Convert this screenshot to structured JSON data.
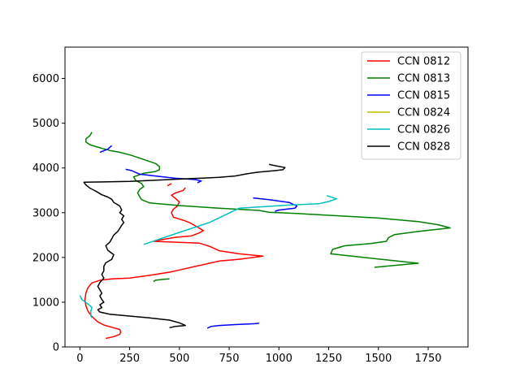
{
  "chart_data": {
    "type": "line",
    "title": "",
    "xlabel": "",
    "ylabel": "",
    "xlim": [
      -75,
      1950
    ],
    "ylim": [
      0,
      6700
    ],
    "xticks": [
      0,
      250,
      500,
      750,
      1000,
      1250,
      1500,
      1750
    ],
    "yticks": [
      0,
      1000,
      2000,
      3000,
      4000,
      5000,
      6000
    ],
    "grid": false,
    "legend_position": "top-right",
    "series": [
      {
        "name": "CCN 0812",
        "color": "#ff0000",
        "segments": [
          [
            [
              130,
              190
            ],
            [
              170,
              230
            ],
            [
              200,
              280
            ],
            [
              205,
              330
            ],
            [
              200,
              390
            ],
            [
              160,
              440
            ],
            [
              120,
              490
            ],
            [
              90,
              560
            ],
            [
              60,
              680
            ],
            [
              40,
              800
            ],
            [
              30,
              920
            ],
            [
              25,
              1050
            ],
            [
              30,
              1200
            ],
            [
              40,
              1320
            ],
            [
              60,
              1430
            ],
            [
              100,
              1490
            ],
            [
              160,
              1520
            ],
            [
              250,
              1540
            ],
            [
              350,
              1600
            ],
            [
              450,
              1670
            ],
            [
              500,
              1720
            ],
            [
              580,
              1800
            ],
            [
              650,
              1870
            ],
            [
              700,
              1920
            ],
            [
              800,
              1960
            ],
            [
              920,
              2030
            ],
            [
              800,
              2080
            ],
            [
              700,
              2150
            ],
            [
              650,
              2250
            ],
            [
              600,
              2320
            ],
            [
              370,
              2360
            ],
            [
              400,
              2390
            ],
            [
              480,
              2450
            ],
            [
              560,
              2480
            ],
            [
              600,
              2550
            ],
            [
              620,
              2600
            ],
            [
              590,
              2680
            ],
            [
              550,
              2780
            ],
            [
              520,
              2830
            ],
            [
              470,
              2900
            ],
            [
              460,
              3000
            ],
            [
              470,
              3080
            ],
            [
              490,
              3150
            ],
            [
              500,
              3240
            ],
            [
              480,
              3320
            ],
            [
              460,
              3390
            ],
            [
              480,
              3440
            ],
            [
              520,
              3500
            ],
            [
              530,
              3560
            ]
          ],
          [
            [
              440,
              3600
            ],
            [
              460,
              3650
            ]
          ]
        ]
      },
      {
        "name": "CCN 0813",
        "color": "#008000",
        "segments": [
          [
            [
              60,
              4800
            ],
            [
              50,
              4720
            ],
            [
              30,
              4650
            ],
            [
              30,
              4580
            ],
            [
              50,
              4520
            ],
            [
              100,
              4450
            ],
            [
              150,
              4390
            ],
            [
              200,
              4350
            ],
            [
              260,
              4280
            ],
            [
              300,
              4220
            ],
            [
              340,
              4160
            ],
            [
              380,
              4100
            ],
            [
              400,
              4030
            ],
            [
              400,
              3960
            ],
            [
              380,
              3920
            ],
            [
              320,
              3880
            ],
            [
              270,
              3800
            ],
            [
              280,
              3720
            ],
            [
              310,
              3650
            ],
            [
              320,
              3580
            ],
            [
              300,
              3520
            ],
            [
              290,
              3440
            ],
            [
              300,
              3360
            ],
            [
              310,
              3290
            ],
            [
              350,
              3220
            ],
            [
              500,
              3160
            ],
            [
              700,
              3100
            ],
            [
              900,
              3050
            ],
            [
              950,
              3010
            ],
            [
              1100,
              2980
            ],
            [
              1500,
              2880
            ],
            [
              1700,
              2800
            ],
            [
              1800,
              2730
            ],
            [
              1860,
              2660
            ],
            [
              1700,
              2580
            ],
            [
              1580,
              2510
            ],
            [
              1550,
              2440
            ],
            [
              1540,
              2360
            ],
            [
              1460,
              2310
            ],
            [
              1330,
              2260
            ],
            [
              1270,
              2180
            ],
            [
              1260,
              2080
            ],
            [
              1470,
              1980
            ],
            [
              1700,
              1870
            ],
            [
              1480,
              1780
            ]
          ],
          [
            [
              370,
              1460
            ],
            [
              380,
              1490
            ],
            [
              420,
              1510
            ],
            [
              450,
              1520
            ]
          ]
        ]
      },
      {
        "name": "CCN 0815",
        "color": "#0000ff",
        "segments": [
          [
            [
              160,
              4500
            ],
            [
              150,
              4460
            ],
            [
              140,
              4420
            ],
            [
              100,
              4350
            ]
          ],
          [
            [
              230,
              3970
            ],
            [
              260,
              3940
            ],
            [
              300,
              3860
            ],
            [
              380,
              3820
            ],
            [
              480,
              3770
            ],
            [
              580,
              3740
            ],
            [
              610,
              3710
            ],
            [
              590,
              3670
            ]
          ],
          [
            [
              870,
              3330
            ],
            [
              950,
              3290
            ],
            [
              1050,
              3230
            ],
            [
              1090,
              3150
            ],
            [
              1080,
              3100
            ],
            [
              1000,
              3060
            ],
            [
              980,
              3030
            ]
          ],
          [
            [
              640,
              420
            ],
            [
              660,
              460
            ],
            [
              700,
              480
            ],
            [
              780,
              500
            ],
            [
              880,
              520
            ],
            [
              900,
              530
            ]
          ]
        ]
      },
      {
        "name": "CCN 0824",
        "color": "#bfbf00",
        "segments": []
      },
      {
        "name": "CCN 0826",
        "color": "#00bfbf",
        "segments": [
          [
            [
              60,
              650
            ],
            [
              55,
              700
            ],
            [
              55,
              800
            ],
            [
              60,
              880
            ],
            [
              40,
              960
            ],
            [
              10,
              1060
            ],
            [
              0,
              1150
            ]
          ],
          [
            [
              320,
              2290
            ],
            [
              380,
              2380
            ],
            [
              500,
              2560
            ],
            [
              650,
              2780
            ],
            [
              800,
              3100
            ],
            [
              1050,
              3170
            ],
            [
              1200,
              3200
            ],
            [
              1250,
              3250
            ],
            [
              1290,
              3310
            ],
            [
              1240,
              3380
            ]
          ]
        ]
      },
      {
        "name": "CCN 0828",
        "color": "#000000",
        "segments": [
          [
            [
              450,
              430
            ],
            [
              480,
              460
            ],
            [
              530,
              480
            ],
            [
              500,
              540
            ],
            [
              450,
              600
            ],
            [
              350,
              650
            ],
            [
              250,
              690
            ],
            [
              150,
              730
            ],
            [
              100,
              780
            ],
            [
              90,
              830
            ],
            [
              110,
              880
            ],
            [
              100,
              940
            ],
            [
              120,
              1000
            ],
            [
              110,
              1060
            ],
            [
              100,
              1140
            ],
            [
              110,
              1200
            ],
            [
              100,
              1280
            ],
            [
              90,
              1350
            ],
            [
              100,
              1440
            ],
            [
              120,
              1540
            ],
            [
              110,
              1620
            ],
            [
              120,
              1700
            ],
            [
              120,
              1800
            ],
            [
              130,
              1880
            ],
            [
              160,
              1960
            ],
            [
              170,
              2060
            ],
            [
              140,
              2160
            ],
            [
              130,
              2260
            ],
            [
              150,
              2340
            ],
            [
              160,
              2420
            ],
            [
              170,
              2500
            ],
            [
              190,
              2580
            ],
            [
              200,
              2650
            ],
            [
              210,
              2720
            ],
            [
              220,
              2780
            ],
            [
              210,
              2850
            ],
            [
              220,
              2930
            ],
            [
              200,
              3000
            ],
            [
              210,
              3060
            ],
            [
              200,
              3150
            ],
            [
              170,
              3230
            ],
            [
              160,
              3300
            ],
            [
              140,
              3350
            ],
            [
              110,
              3400
            ],
            [
              80,
              3480
            ],
            [
              50,
              3550
            ],
            [
              30,
              3620
            ],
            [
              20,
              3680
            ],
            [
              250,
              3700
            ],
            [
              550,
              3760
            ],
            [
              700,
              3790
            ],
            [
              780,
              3820
            ],
            [
              840,
              3870
            ],
            [
              870,
              3890
            ],
            [
              900,
              3910
            ],
            [
              930,
              3920
            ],
            [
              980,
              3940
            ],
            [
              1020,
              3960
            ],
            [
              1030,
              4010
            ],
            [
              980,
              4050
            ],
            [
              950,
              4080
            ]
          ]
        ]
      }
    ]
  }
}
